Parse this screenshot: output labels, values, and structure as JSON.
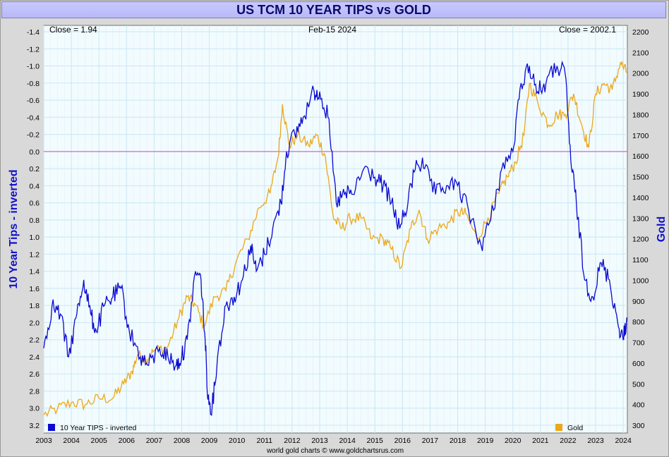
{
  "title": "US TCM 10 YEAR TIPS vs GOLD",
  "header": {
    "close_left": "Close = 1.94",
    "date": "Feb-15  2024",
    "close_right": "Close = 2002.1"
  },
  "credit": "world gold charts © www.goldchartsrus.com",
  "colors": {
    "tips": "#0a0ad2",
    "gold": "#eba81a",
    "zero_line": "#e040c0",
    "grid": "#c9e7f2",
    "plot_bg": "#f2fbfe"
  },
  "chart_data": {
    "type": "line",
    "x_ticks": [
      "2003",
      "2004",
      "2005",
      "2006",
      "2007",
      "2008",
      "2009",
      "2010",
      "2011",
      "2012",
      "2013",
      "2014",
      "2015",
      "2016",
      "2017",
      "2018",
      "2019",
      "2020",
      "2021",
      "2022",
      "2023",
      "2024"
    ],
    "left_axis": {
      "label": "10 Year Tips - inverted",
      "inverted": true,
      "range": [
        -1.4,
        3.2
      ],
      "ticks": [
        "-1.4",
        "-1.2",
        "-1.0",
        "-0.8",
        "-0.6",
        "-0.4",
        "-0.2",
        "0.0",
        "0.2",
        "0.4",
        "0.6",
        "0.8",
        "1.0",
        "1.2",
        "1.4",
        "1.6",
        "1.8",
        "2.0",
        "2.2",
        "2.4",
        "2.6",
        "2.8",
        "3.0",
        "3.2"
      ]
    },
    "right_axis": {
      "label": "Gold",
      "range": [
        300,
        2200
      ],
      "ticks": [
        "2200",
        "2100",
        "2000",
        "1900",
        "1800",
        "1700",
        "1600",
        "1500",
        "1400",
        "1300",
        "1200",
        "1100",
        "1000",
        "900",
        "800",
        "700",
        "600",
        "500",
        "400",
        "300"
      ]
    },
    "zero_line": 0.0,
    "series": [
      {
        "name": "10 Year TIPS - inverted",
        "axis": "left",
        "x": [
          2003.0,
          2003.3,
          2003.6,
          2003.9,
          2004.2,
          2004.45,
          2004.7,
          2004.9,
          2005.2,
          2005.5,
          2005.8,
          2006.1,
          2006.5,
          2006.8,
          2007.2,
          2007.5,
          2007.8,
          2008.0,
          2008.2,
          2008.5,
          2008.7,
          2008.85,
          2008.95,
          2009.1,
          2009.3,
          2009.6,
          2009.9,
          2010.2,
          2010.5,
          2010.7,
          2011.0,
          2011.3,
          2011.6,
          2011.8,
          2012.1,
          2012.4,
          2012.8,
          2013.0,
          2013.3,
          2013.6,
          2013.9,
          2014.2,
          2014.6,
          2015.0,
          2015.3,
          2015.6,
          2015.9,
          2016.2,
          2016.5,
          2016.8,
          2017.2,
          2017.6,
          2018.0,
          2018.4,
          2018.85,
          2019.2,
          2019.6,
          2020.0,
          2020.3,
          2020.6,
          2020.9,
          2021.2,
          2021.6,
          2021.9,
          2022.1,
          2022.3,
          2022.6,
          2022.9,
          2023.2,
          2023.5,
          2023.8,
          2024.0,
          2024.13
        ],
        "values": [
          2.3,
          1.8,
          1.9,
          2.4,
          1.9,
          1.5,
          1.9,
          2.1,
          1.8,
          1.7,
          1.6,
          2.1,
          2.4,
          2.5,
          2.3,
          2.4,
          2.5,
          2.4,
          2.2,
          1.4,
          1.5,
          2.2,
          2.9,
          3.0,
          2.4,
          1.8,
          1.7,
          1.5,
          1.1,
          1.4,
          1.2,
          0.9,
          0.6,
          0.0,
          -0.2,
          -0.4,
          -0.7,
          -0.7,
          -0.4,
          0.6,
          0.5,
          0.5,
          0.2,
          0.3,
          0.4,
          0.6,
          0.9,
          0.6,
          0.1,
          0.2,
          0.5,
          0.4,
          0.4,
          0.7,
          1.1,
          0.8,
          0.2,
          0.0,
          -0.8,
          -1.0,
          -0.7,
          -0.8,
          -1.0,
          -0.9,
          0.1,
          0.6,
          1.5,
          1.7,
          1.3,
          1.5,
          2.0,
          2.2,
          1.94
        ]
      },
      {
        "name": "Gold",
        "axis": "right",
        "x": [
          2003.0,
          2003.5,
          2004.0,
          2004.5,
          2005.0,
          2005.5,
          2005.9,
          2006.2,
          2006.4,
          2006.7,
          2007.0,
          2007.5,
          2007.9,
          2008.2,
          2008.5,
          2008.8,
          2009.2,
          2009.6,
          2010.0,
          2010.4,
          2010.8,
          2011.2,
          2011.5,
          2011.65,
          2011.9,
          2012.2,
          2012.6,
          2012.9,
          2013.2,
          2013.5,
          2013.8,
          2014.1,
          2014.5,
          2014.9,
          2015.3,
          2015.6,
          2015.95,
          2016.3,
          2016.6,
          2016.9,
          2017.3,
          2017.7,
          2018.0,
          2018.3,
          2018.7,
          2019.1,
          2019.5,
          2019.8,
          2020.1,
          2020.4,
          2020.6,
          2020.9,
          2021.3,
          2021.6,
          2021.9,
          2022.2,
          2022.5,
          2022.75,
          2023.0,
          2023.3,
          2023.6,
          2023.9,
          2024.13
        ],
        "values": [
          350,
          380,
          410,
          400,
          430,
          430,
          500,
          560,
          640,
          620,
          660,
          680,
          820,
          920,
          880,
          780,
          920,
          950,
          1100,
          1200,
          1350,
          1420,
          1600,
          1850,
          1650,
          1700,
          1650,
          1700,
          1600,
          1300,
          1250,
          1300,
          1300,
          1200,
          1200,
          1150,
          1060,
          1250,
          1340,
          1200,
          1250,
          1280,
          1330,
          1320,
          1200,
          1300,
          1420,
          1500,
          1570,
          1700,
          1950,
          1860,
          1750,
          1800,
          1800,
          1900,
          1750,
          1640,
          1900,
          1950,
          1920,
          2050,
          2002
        ]
      }
    ],
    "legend": [
      "10 Year TIPS - inverted",
      "Gold"
    ]
  }
}
